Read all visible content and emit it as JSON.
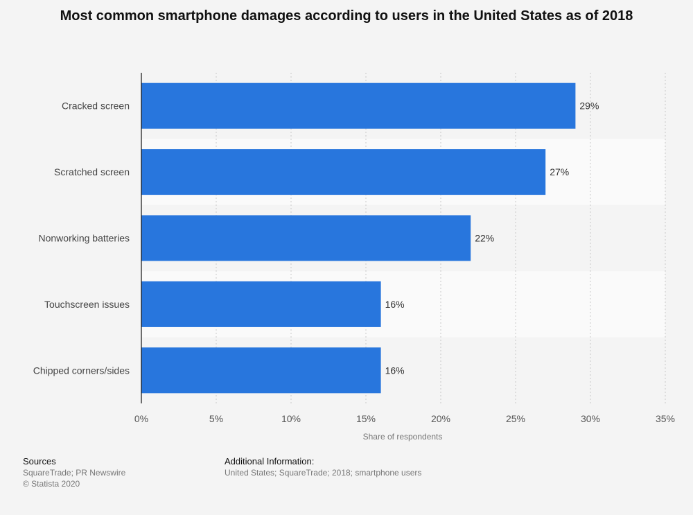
{
  "chart_data": {
    "type": "bar",
    "orientation": "horizontal",
    "title": "Most common smartphone damages according to users in the United States as of 2018",
    "categories": [
      "Cracked screen",
      "Scratched screen",
      "Nonworking batteries",
      "Touchscreen issues",
      "Chipped corners/sides"
    ],
    "values": [
      29,
      27,
      22,
      16,
      16
    ],
    "value_labels": [
      "29%",
      "27%",
      "22%",
      "16%",
      "16%"
    ],
    "xlabel": "Share of respondents",
    "ylabel": "",
    "xlim": [
      0,
      35
    ],
    "xticks": [
      0,
      5,
      10,
      15,
      20,
      25,
      30,
      35
    ],
    "xtick_labels": [
      "0%",
      "5%",
      "10%",
      "15%",
      "20%",
      "25%",
      "30%",
      "35%"
    ],
    "grid": true,
    "bar_color": "#2876dd"
  },
  "footer": {
    "sources_heading": "Sources",
    "sources_text": "SquareTrade; PR Newswire",
    "copyright": "© Statista 2020",
    "additional_heading": "Additional Information:",
    "additional_text": "United States; SquareTrade; 2018; smartphone users"
  }
}
